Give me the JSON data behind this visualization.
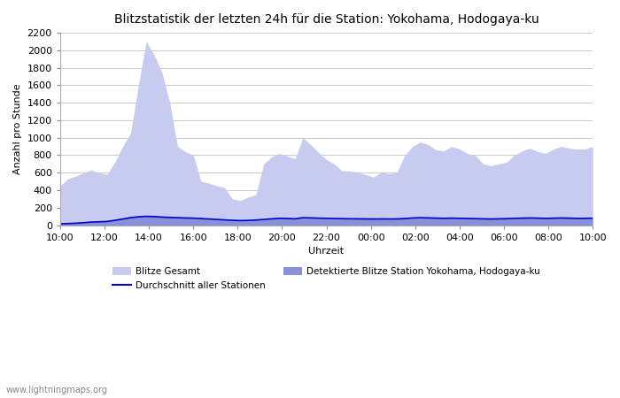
{
  "title": "Blitzstatistik der letzten 24h für die Station: Yokohama, Hodogaya-ku",
  "xlabel": "Uhrzeit",
  "ylabel": "Anzahl pro Stunde",
  "watermark": "www.lightningmaps.org",
  "legend": {
    "blitze_gesamt": "Blitze Gesamt",
    "detektierte": "Detektierte Blitze Station Yokohama, Hodogaya-ku",
    "durchschnitt": "Durchschnitt aller Stationen"
  },
  "x_labels": [
    "10:00",
    "12:00",
    "14:00",
    "16:00",
    "18:00",
    "20:00",
    "22:00",
    "00:00",
    "02:00",
    "04:00",
    "06:00",
    "08:00",
    "10:00"
  ],
  "ylim": [
    0,
    2200
  ],
  "yticks": [
    0,
    200,
    400,
    600,
    800,
    1000,
    1200,
    1400,
    1600,
    1800,
    2000,
    2200
  ],
  "blitze_gesamt": [
    450,
    530,
    560,
    600,
    630,
    600,
    580,
    720,
    900,
    1050,
    1600,
    2100,
    1950,
    1750,
    1400,
    900,
    840,
    800,
    500,
    480,
    450,
    430,
    300,
    280,
    320,
    350,
    700,
    780,
    820,
    790,
    760,
    1000,
    920,
    830,
    750,
    700,
    620,
    620,
    600,
    580,
    550,
    600,
    590,
    600,
    800,
    900,
    950,
    920,
    860,
    850,
    900,
    870,
    820,
    800,
    700,
    680,
    700,
    720,
    800,
    850,
    880,
    840,
    820,
    870,
    900,
    880,
    870,
    870,
    900
  ],
  "detektierte": [
    20,
    25,
    30,
    35,
    40,
    42,
    45,
    60,
    80,
    100,
    110,
    115,
    110,
    100,
    95,
    90,
    85,
    80,
    75,
    70,
    65,
    60,
    55,
    52,
    55,
    60,
    70,
    78,
    82,
    80,
    75,
    90,
    88,
    85,
    82,
    80,
    78,
    77,
    76,
    75,
    74,
    75,
    74,
    75,
    80,
    88,
    90,
    88,
    85,
    83,
    85,
    83,
    80,
    78,
    75,
    73,
    75,
    77,
    80,
    83,
    85,
    83,
    80,
    83,
    85,
    83,
    80,
    80,
    85
  ],
  "avg_all": [
    15,
    18,
    22,
    28,
    35,
    38,
    42,
    55,
    70,
    85,
    95,
    100,
    98,
    92,
    88,
    85,
    82,
    80,
    75,
    70,
    65,
    60,
    55,
    52,
    54,
    58,
    65,
    72,
    78,
    76,
    72,
    85,
    83,
    80,
    78,
    76,
    74,
    73,
    72,
    71,
    70,
    71,
    70,
    71,
    75,
    82,
    85,
    83,
    80,
    78,
    80,
    78,
    76,
    74,
    72,
    70,
    72,
    74,
    77,
    80,
    82,
    80,
    77,
    80,
    82,
    80,
    77,
    77,
    80
  ],
  "bg_color": "#ffffff",
  "fill_gesamt_color": "#c8cbf0",
  "fill_detektierte_color": "#8890d8",
  "line_avg_color": "#0000cc",
  "grid_color": "#cccccc",
  "num_points": 69
}
